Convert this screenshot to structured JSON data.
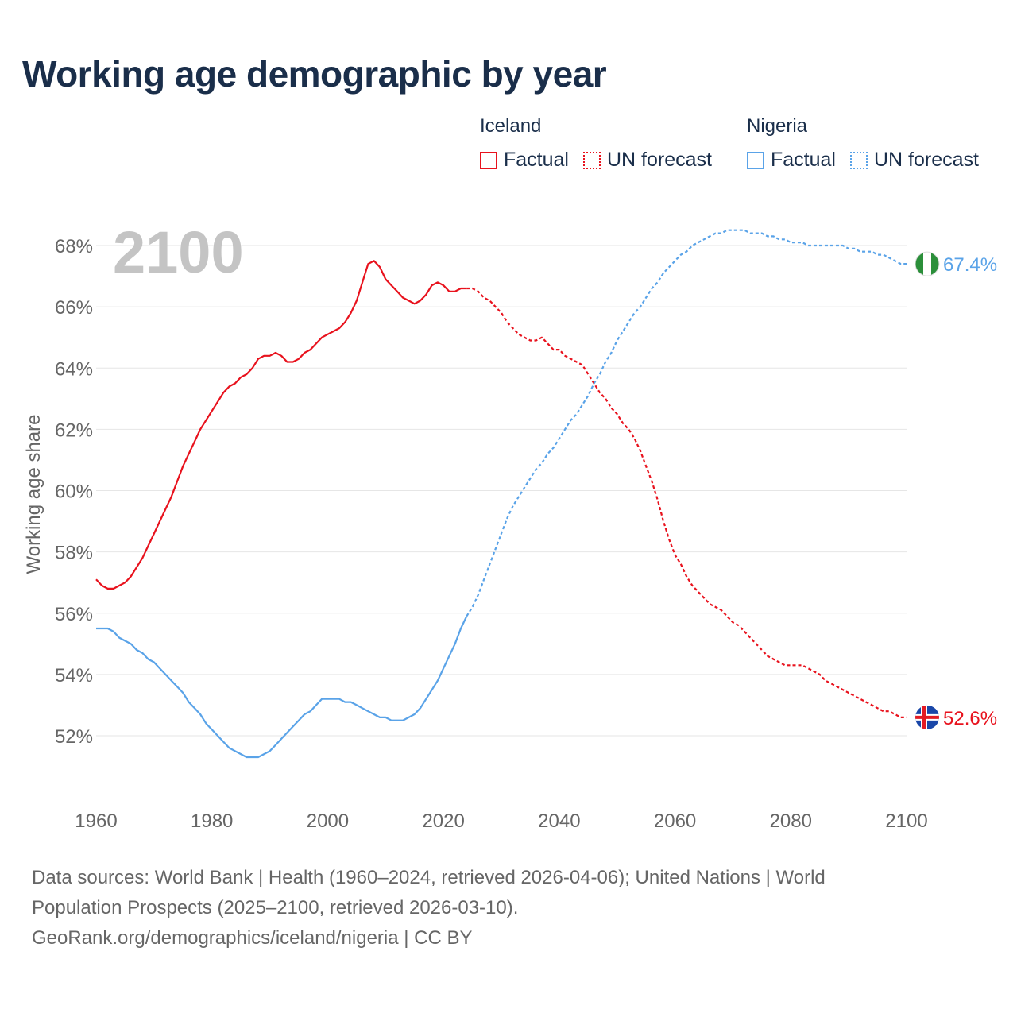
{
  "title": "Working age demographic by year",
  "year_overlay": "2100",
  "legend": {
    "groups": [
      {
        "country": "Iceland",
        "color": "#e8121d",
        "items": [
          "Factual",
          "UN forecast"
        ]
      },
      {
        "country": "Nigeria",
        "color": "#5aa3e8",
        "items": [
          "Factual",
          "UN forecast"
        ]
      }
    ]
  },
  "end_labels": {
    "nigeria": "67.4%",
    "iceland": "52.6%"
  },
  "footer": {
    "sources_line1": "Data sources: World Bank | Health (1960–2024, retrieved 2026-04-06); United Nations | World",
    "sources_line2": "Population Prospects (2025–2100, retrieved 2026-03-10).",
    "credit": "GeoRank.org/demographics/iceland/nigeria | CC BY"
  },
  "flag_icons": {
    "nigeria": "nigeria-flag-icon",
    "iceland": "iceland-flag-icon"
  },
  "chart_data": {
    "type": "line",
    "title": "Working age demographic by year",
    "xlabel": "",
    "ylabel": "Working age share",
    "xlim": [
      1960,
      2100
    ],
    "ylim": [
      50,
      69
    ],
    "x_ticks": [
      "1960",
      "1980",
      "2000",
      "2020",
      "2040",
      "2060",
      "2080",
      "2100"
    ],
    "y_ticks": [
      "52%",
      "54%",
      "56%",
      "58%",
      "60%",
      "62%",
      "64%",
      "66%",
      "68%"
    ],
    "y_tick_values": [
      52,
      54,
      56,
      58,
      60,
      62,
      64,
      66,
      68
    ],
    "x_tick_values": [
      1960,
      1980,
      2000,
      2020,
      2040,
      2060,
      2080,
      2100
    ],
    "series": [
      {
        "name": "Iceland",
        "style": "Factual",
        "color": "#e8121d",
        "points": [
          [
            1960,
            57.1
          ],
          [
            1961,
            56.9
          ],
          [
            1962,
            56.8
          ],
          [
            1963,
            56.8
          ],
          [
            1964,
            56.9
          ],
          [
            1965,
            57.0
          ],
          [
            1966,
            57.2
          ],
          [
            1967,
            57.5
          ],
          [
            1968,
            57.8
          ],
          [
            1969,
            58.2
          ],
          [
            1970,
            58.6
          ],
          [
            1971,
            59.0
          ],
          [
            1972,
            59.4
          ],
          [
            1973,
            59.8
          ],
          [
            1974,
            60.3
          ],
          [
            1975,
            60.8
          ],
          [
            1976,
            61.2
          ],
          [
            1977,
            61.6
          ],
          [
            1978,
            62.0
          ],
          [
            1979,
            62.3
          ],
          [
            1980,
            62.6
          ],
          [
            1981,
            62.9
          ],
          [
            1982,
            63.2
          ],
          [
            1983,
            63.4
          ],
          [
            1984,
            63.5
          ],
          [
            1985,
            63.7
          ],
          [
            1986,
            63.8
          ],
          [
            1987,
            64.0
          ],
          [
            1988,
            64.3
          ],
          [
            1989,
            64.4
          ],
          [
            1990,
            64.4
          ],
          [
            1991,
            64.5
          ],
          [
            1992,
            64.4
          ],
          [
            1993,
            64.2
          ],
          [
            1994,
            64.2
          ],
          [
            1995,
            64.3
          ],
          [
            1996,
            64.5
          ],
          [
            1997,
            64.6
          ],
          [
            1998,
            64.8
          ],
          [
            1999,
            65.0
          ],
          [
            2000,
            65.1
          ],
          [
            2001,
            65.2
          ],
          [
            2002,
            65.3
          ],
          [
            2003,
            65.5
          ],
          [
            2004,
            65.8
          ],
          [
            2005,
            66.2
          ],
          [
            2006,
            66.8
          ],
          [
            2007,
            67.4
          ],
          [
            2008,
            67.5
          ],
          [
            2009,
            67.3
          ],
          [
            2010,
            66.9
          ],
          [
            2011,
            66.7
          ],
          [
            2012,
            66.5
          ],
          [
            2013,
            66.3
          ],
          [
            2014,
            66.2
          ],
          [
            2015,
            66.1
          ],
          [
            2016,
            66.2
          ],
          [
            2017,
            66.4
          ],
          [
            2018,
            66.7
          ],
          [
            2019,
            66.8
          ],
          [
            2020,
            66.7
          ],
          [
            2021,
            66.5
          ],
          [
            2022,
            66.5
          ],
          [
            2023,
            66.6
          ],
          [
            2024,
            66.6
          ]
        ]
      },
      {
        "name": "Iceland",
        "style": "UN forecast",
        "color": "#e8121d",
        "points": [
          [
            2024,
            66.6
          ],
          [
            2025,
            66.6
          ],
          [
            2026,
            66.5
          ],
          [
            2027,
            66.3
          ],
          [
            2028,
            66.2
          ],
          [
            2029,
            66.0
          ],
          [
            2030,
            65.8
          ],
          [
            2031,
            65.5
          ],
          [
            2032,
            65.3
          ],
          [
            2033,
            65.1
          ],
          [
            2034,
            65.0
          ],
          [
            2035,
            64.9
          ],
          [
            2036,
            64.9
          ],
          [
            2037,
            65.0
          ],
          [
            2038,
            64.8
          ],
          [
            2039,
            64.6
          ],
          [
            2040,
            64.6
          ],
          [
            2041,
            64.4
          ],
          [
            2042,
            64.3
          ],
          [
            2043,
            64.2
          ],
          [
            2044,
            64.1
          ],
          [
            2045,
            63.8
          ],
          [
            2046,
            63.5
          ],
          [
            2047,
            63.2
          ],
          [
            2048,
            63.0
          ],
          [
            2049,
            62.7
          ],
          [
            2050,
            62.5
          ],
          [
            2051,
            62.2
          ],
          [
            2052,
            62.0
          ],
          [
            2053,
            61.7
          ],
          [
            2054,
            61.3
          ],
          [
            2055,
            60.8
          ],
          [
            2056,
            60.3
          ],
          [
            2057,
            59.7
          ],
          [
            2058,
            59.0
          ],
          [
            2059,
            58.4
          ],
          [
            2060,
            57.9
          ],
          [
            2061,
            57.6
          ],
          [
            2062,
            57.2
          ],
          [
            2063,
            56.9
          ],
          [
            2064,
            56.7
          ],
          [
            2065,
            56.5
          ],
          [
            2066,
            56.3
          ],
          [
            2067,
            56.2
          ],
          [
            2068,
            56.1
          ],
          [
            2069,
            55.9
          ],
          [
            2070,
            55.7
          ],
          [
            2071,
            55.6
          ],
          [
            2072,
            55.4
          ],
          [
            2073,
            55.2
          ],
          [
            2074,
            55.0
          ],
          [
            2075,
            54.8
          ],
          [
            2076,
            54.6
          ],
          [
            2077,
            54.5
          ],
          [
            2078,
            54.4
          ],
          [
            2079,
            54.3
          ],
          [
            2080,
            54.3
          ],
          [
            2081,
            54.3
          ],
          [
            2082,
            54.3
          ],
          [
            2083,
            54.2
          ],
          [
            2084,
            54.1
          ],
          [
            2085,
            54.0
          ],
          [
            2086,
            53.8
          ],
          [
            2087,
            53.7
          ],
          [
            2088,
            53.6
          ],
          [
            2089,
            53.5
          ],
          [
            2090,
            53.4
          ],
          [
            2091,
            53.3
          ],
          [
            2092,
            53.2
          ],
          [
            2093,
            53.1
          ],
          [
            2094,
            53.0
          ],
          [
            2095,
            52.9
          ],
          [
            2096,
            52.8
          ],
          [
            2097,
            52.8
          ],
          [
            2098,
            52.7
          ],
          [
            2099,
            52.6
          ],
          [
            2100,
            52.6
          ]
        ]
      },
      {
        "name": "Nigeria",
        "style": "Factual",
        "color": "#5aa3e8",
        "points": [
          [
            1960,
            55.5
          ],
          [
            1961,
            55.5
          ],
          [
            1962,
            55.5
          ],
          [
            1963,
            55.4
          ],
          [
            1964,
            55.2
          ],
          [
            1965,
            55.1
          ],
          [
            1966,
            55.0
          ],
          [
            1967,
            54.8
          ],
          [
            1968,
            54.7
          ],
          [
            1969,
            54.5
          ],
          [
            1970,
            54.4
          ],
          [
            1971,
            54.2
          ],
          [
            1972,
            54.0
          ],
          [
            1973,
            53.8
          ],
          [
            1974,
            53.6
          ],
          [
            1975,
            53.4
          ],
          [
            1976,
            53.1
          ],
          [
            1977,
            52.9
          ],
          [
            1978,
            52.7
          ],
          [
            1979,
            52.4
          ],
          [
            1980,
            52.2
          ],
          [
            1981,
            52.0
          ],
          [
            1982,
            51.8
          ],
          [
            1983,
            51.6
          ],
          [
            1984,
            51.5
          ],
          [
            1985,
            51.4
          ],
          [
            1986,
            51.3
          ],
          [
            1987,
            51.3
          ],
          [
            1988,
            51.3
          ],
          [
            1989,
            51.4
          ],
          [
            1990,
            51.5
          ],
          [
            1991,
            51.7
          ],
          [
            1992,
            51.9
          ],
          [
            1993,
            52.1
          ],
          [
            1994,
            52.3
          ],
          [
            1995,
            52.5
          ],
          [
            1996,
            52.7
          ],
          [
            1997,
            52.8
          ],
          [
            1998,
            53.0
          ],
          [
            1999,
            53.2
          ],
          [
            2000,
            53.2
          ],
          [
            2001,
            53.2
          ],
          [
            2002,
            53.2
          ],
          [
            2003,
            53.1
          ],
          [
            2004,
            53.1
          ],
          [
            2005,
            53.0
          ],
          [
            2006,
            52.9
          ],
          [
            2007,
            52.8
          ],
          [
            2008,
            52.7
          ],
          [
            2009,
            52.6
          ],
          [
            2010,
            52.6
          ],
          [
            2011,
            52.5
          ],
          [
            2012,
            52.5
          ],
          [
            2013,
            52.5
          ],
          [
            2014,
            52.6
          ],
          [
            2015,
            52.7
          ],
          [
            2016,
            52.9
          ],
          [
            2017,
            53.2
          ],
          [
            2018,
            53.5
          ],
          [
            2019,
            53.8
          ],
          [
            2020,
            54.2
          ],
          [
            2021,
            54.6
          ],
          [
            2022,
            55.0
          ],
          [
            2023,
            55.5
          ],
          [
            2024,
            55.9
          ]
        ]
      },
      {
        "name": "Nigeria",
        "style": "UN forecast",
        "color": "#5aa3e8",
        "points": [
          [
            2024,
            55.9
          ],
          [
            2025,
            56.2
          ],
          [
            2026,
            56.6
          ],
          [
            2027,
            57.1
          ],
          [
            2028,
            57.6
          ],
          [
            2029,
            58.1
          ],
          [
            2030,
            58.6
          ],
          [
            2031,
            59.1
          ],
          [
            2032,
            59.5
          ],
          [
            2033,
            59.8
          ],
          [
            2034,
            60.1
          ],
          [
            2035,
            60.4
          ],
          [
            2036,
            60.7
          ],
          [
            2037,
            60.9
          ],
          [
            2038,
            61.2
          ],
          [
            2039,
            61.4
          ],
          [
            2040,
            61.7
          ],
          [
            2041,
            62.0
          ],
          [
            2042,
            62.3
          ],
          [
            2043,
            62.5
          ],
          [
            2044,
            62.8
          ],
          [
            2045,
            63.1
          ],
          [
            2046,
            63.5
          ],
          [
            2047,
            63.8
          ],
          [
            2048,
            64.2
          ],
          [
            2049,
            64.5
          ],
          [
            2050,
            64.9
          ],
          [
            2051,
            65.2
          ],
          [
            2052,
            65.5
          ],
          [
            2053,
            65.8
          ],
          [
            2054,
            66.0
          ],
          [
            2055,
            66.3
          ],
          [
            2056,
            66.6
          ],
          [
            2057,
            66.8
          ],
          [
            2058,
            67.1
          ],
          [
            2059,
            67.3
          ],
          [
            2060,
            67.5
          ],
          [
            2061,
            67.7
          ],
          [
            2062,
            67.8
          ],
          [
            2063,
            68.0
          ],
          [
            2064,
            68.1
          ],
          [
            2065,
            68.2
          ],
          [
            2066,
            68.3
          ],
          [
            2067,
            68.4
          ],
          [
            2068,
            68.4
          ],
          [
            2069,
            68.5
          ],
          [
            2070,
            68.5
          ],
          [
            2071,
            68.5
          ],
          [
            2072,
            68.5
          ],
          [
            2073,
            68.4
          ],
          [
            2074,
            68.4
          ],
          [
            2075,
            68.4
          ],
          [
            2076,
            68.3
          ],
          [
            2077,
            68.3
          ],
          [
            2078,
            68.2
          ],
          [
            2079,
            68.2
          ],
          [
            2080,
            68.1
          ],
          [
            2081,
            68.1
          ],
          [
            2082,
            68.1
          ],
          [
            2083,
            68.0
          ],
          [
            2084,
            68.0
          ],
          [
            2085,
            68.0
          ],
          [
            2086,
            68.0
          ],
          [
            2087,
            68.0
          ],
          [
            2088,
            68.0
          ],
          [
            2089,
            68.0
          ],
          [
            2090,
            67.9
          ],
          [
            2091,
            67.9
          ],
          [
            2092,
            67.8
          ],
          [
            2093,
            67.8
          ],
          [
            2094,
            67.8
          ],
          [
            2095,
            67.7
          ],
          [
            2096,
            67.7
          ],
          [
            2097,
            67.6
          ],
          [
            2098,
            67.5
          ],
          [
            2099,
            67.4
          ],
          [
            2100,
            67.4
          ]
        ]
      }
    ]
  }
}
